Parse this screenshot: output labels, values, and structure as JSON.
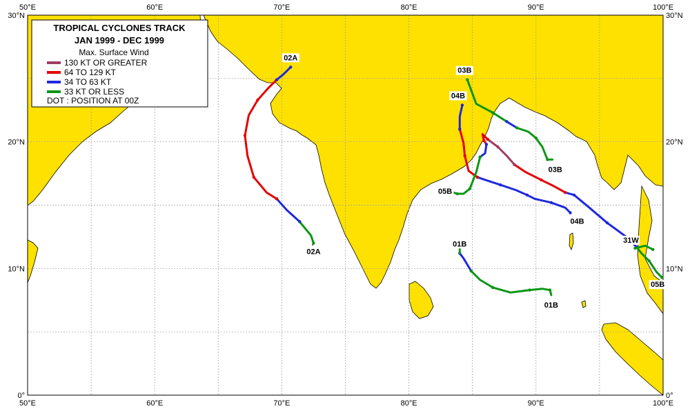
{
  "map": {
    "title": "TROPICAL CYCLONES TRACK",
    "period": "JAN 1999  -  DEC 1999",
    "lon_range": [
      50,
      100
    ],
    "lat_range": [
      0,
      30
    ],
    "colors": {
      "land": "#ffe100",
      "sea": "#ffffff",
      "grid": "#9a9a9a",
      "coast": "#000000"
    }
  },
  "axes": {
    "lon_ticks": [
      "50°E",
      "60°E",
      "70°E",
      "80°E",
      "90°E",
      "100°E"
    ],
    "lat_ticks": [
      "0°",
      "10°N",
      "20°N",
      "30°N"
    ]
  },
  "legend": {
    "heading": "Max. Surface Wind",
    "items": [
      {
        "label": "130 KT OR GREATER",
        "color": "#a03c64"
      },
      {
        "label": "64 TO 129 KT",
        "color": "#e60000"
      },
      {
        "label": "34 TO 63 KT",
        "color": "#1e28dc"
      },
      {
        "label": "33 KT OR LESS",
        "color": "#0a9614"
      }
    ],
    "dot_note": "DOT : POSITION AT 00Z"
  },
  "storms": [
    {
      "id": "02A",
      "label_start": "02A",
      "label_end": "02A",
      "segments": [
        {
          "cat": 4,
          "pts": [
            [
              72.5,
              12.0
            ],
            [
              72.3,
              12.6
            ],
            [
              71.4,
              13.7
            ]
          ]
        },
        {
          "cat": 3,
          "pts": [
            [
              71.4,
              13.7
            ],
            [
              70.4,
              14.6
            ],
            [
              69.6,
              15.5
            ]
          ]
        },
        {
          "cat": 2,
          "pts": [
            [
              69.6,
              15.5
            ],
            [
              68.8,
              16.0
            ],
            [
              67.8,
              17.2
            ],
            [
              67.3,
              18.9
            ],
            [
              67.1,
              20.5
            ],
            [
              67.4,
              22.1
            ],
            [
              68.1,
              23.3
            ],
            [
              68.9,
              24.2
            ],
            [
              69.6,
              24.9
            ]
          ]
        },
        {
          "cat": 3,
          "pts": [
            [
              69.6,
              24.9
            ],
            [
              70.1,
              25.3
            ],
            [
              70.7,
              25.9
            ]
          ]
        }
      ]
    },
    {
      "id": "01B",
      "label_start": "01B",
      "label_end": "01B",
      "segments": [
        {
          "cat": 3,
          "pts": [
            [
              84.0,
              11.2
            ],
            [
              84.3,
              10.8
            ],
            [
              84.9,
              9.8
            ]
          ]
        },
        {
          "cat": 4,
          "pts": [
            [
              84.0,
              11.7
            ],
            [
              84.0,
              11.2
            ]
          ]
        },
        {
          "cat": 4,
          "pts": [
            [
              84.9,
              9.8
            ],
            [
              85.6,
              9.1
            ],
            [
              86.6,
              8.5
            ],
            [
              88.0,
              8.1
            ],
            [
              89.5,
              8.3
            ],
            [
              90.5,
              8.4
            ],
            [
              91.1,
              8.3
            ],
            [
              91.2,
              7.9
            ]
          ]
        }
      ]
    },
    {
      "id": "03B",
      "label_start": "03B",
      "label_end": "03B",
      "segments": [
        {
          "cat": 4,
          "pts": [
            [
              84.6,
              24.9
            ],
            [
              85.3,
              23.0
            ],
            [
              86.6,
              22.3
            ],
            [
              87.7,
              21.6
            ]
          ]
        },
        {
          "cat": 3,
          "pts": [
            [
              87.7,
              21.6
            ],
            [
              88.5,
              21.1
            ]
          ]
        },
        {
          "cat": 4,
          "pts": [
            [
              88.5,
              21.1
            ],
            [
              89.4,
              20.8
            ],
            [
              90.0,
              20.3
            ],
            [
              90.5,
              19.6
            ],
            [
              90.9,
              18.6
            ],
            [
              91.3,
              18.6
            ]
          ]
        }
      ]
    },
    {
      "id": "04B",
      "label_start": "04B",
      "label_end": "04B",
      "segments": [
        {
          "cat": 3,
          "pts": [
            [
              92.7,
              14.4
            ],
            [
              92.3,
              14.8
            ],
            [
              91.2,
              15.2
            ],
            [
              89.9,
              15.5
            ],
            [
              89.3,
              15.8
            ],
            [
              88.4,
              16.2
            ],
            [
              87.2,
              16.6
            ],
            [
              86.0,
              17.0
            ],
            [
              85.4,
              17.2
            ]
          ]
        },
        {
          "cat": 2,
          "pts": [
            [
              85.4,
              17.2
            ],
            [
              84.7,
              17.7
            ],
            [
              84.4,
              18.9
            ],
            [
              84.3,
              19.9
            ],
            [
              84.0,
              21.0
            ]
          ]
        },
        {
          "cat": 3,
          "pts": [
            [
              84.0,
              21.0
            ],
            [
              84.0,
              22.0
            ],
            [
              84.2,
              22.9
            ]
          ]
        }
      ]
    },
    {
      "id": "05B",
      "label_start": "05B",
      "label_end": "05B",
      "segments": [
        {
          "cat": 4,
          "pts": [
            [
              99.9,
              9.3
            ],
            [
              99.5,
              9.7
            ],
            [
              98.9,
              10.6
            ],
            [
              98.3,
              11.2
            ],
            [
              97.9,
              11.7
            ]
          ]
        },
        {
          "cat": 3,
          "pts": [
            [
              97.9,
              11.7
            ],
            [
              97.1,
              12.5
            ],
            [
              95.6,
              13.6
            ],
            [
              94.2,
              14.8
            ],
            [
              93.0,
              15.8
            ],
            [
              92.3,
              16.0
            ]
          ]
        },
        {
          "cat": 2,
          "pts": [
            [
              92.3,
              16.0
            ],
            [
              91.4,
              16.5
            ],
            [
              90.4,
              17.0
            ],
            [
              89.2,
              17.6
            ],
            [
              88.3,
              18.2
            ]
          ]
        },
        {
          "cat": 1,
          "pts": [
            [
              88.3,
              18.2
            ],
            [
              87.7,
              18.9
            ],
            [
              87.0,
              19.6
            ],
            [
              86.2,
              20.2
            ]
          ]
        },
        {
          "cat": 2,
          "pts": [
            [
              86.2,
              20.2
            ],
            [
              85.8,
              20.6
            ],
            [
              85.9,
              20.1
            ],
            [
              86.1,
              19.8
            ]
          ]
        },
        {
          "cat": 3,
          "pts": [
            [
              86.1,
              19.8
            ],
            [
              86.0,
              19.1
            ],
            [
              85.6,
              18.8
            ]
          ]
        },
        {
          "cat": 4,
          "pts": [
            [
              85.6,
              18.8
            ],
            [
              85.3,
              17.6
            ],
            [
              84.8,
              16.3
            ],
            [
              84.3,
              15.9
            ],
            [
              83.8,
              15.9
            ],
            [
              83.5,
              16.0
            ]
          ]
        }
      ]
    },
    {
      "id": "31W",
      "label_start": "31W",
      "label_end": "",
      "segments": [
        {
          "cat": 4,
          "pts": [
            [
              97.8,
              11.6
            ],
            [
              98.6,
              11.8
            ],
            [
              99.2,
              11.5
            ]
          ]
        }
      ]
    }
  ]
}
